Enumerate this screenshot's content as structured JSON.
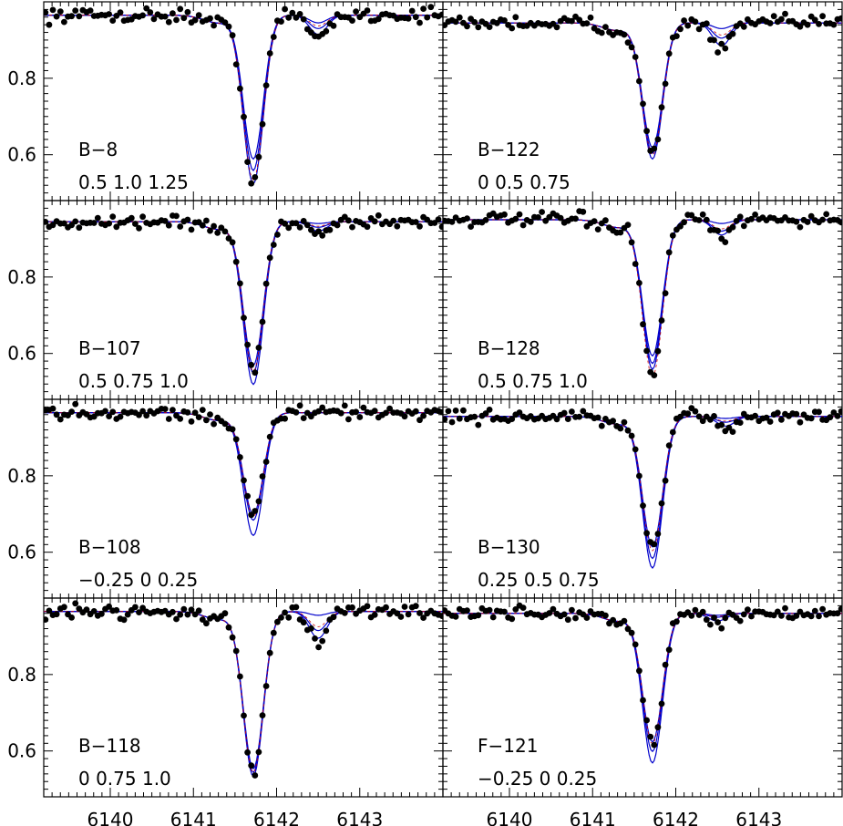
{
  "chart_data": {
    "type": "line",
    "x_ticks": [
      6140,
      6141,
      6142,
      6143
    ],
    "y_ticks": [
      0.6,
      0.8
    ],
    "xlim": [
      6139.2,
      6144.0
    ],
    "ylim": [
      0.48,
      1.0
    ],
    "series_styles": {
      "observed": "black dots",
      "synthetic": "blue lines",
      "best_fit": "red dashed"
    },
    "colors": {
      "synthetic": "#0000cc",
      "best_fit": "#cc0000",
      "observed": "#000000"
    },
    "panels": [
      {
        "star": "B−8",
        "abundances": "0.5  1.0  1.25",
        "cont": 0.965,
        "depths": [
          0.375,
          0.405,
          0.44
        ],
        "obs_depth": 0.43,
        "blend_depths": [
          0.02,
          0.035,
          0.05
        ],
        "blend_center": 6142.5
      },
      {
        "star": "B−122",
        "abundances": "0  0.5  0.75",
        "cont": 0.945,
        "depths": [
          0.325,
          0.34,
          0.355
        ],
        "obs_depth": 0.345,
        "blend_depths": [
          0.015,
          0.04,
          0.06
        ],
        "blend_center": 6142.55
      },
      {
        "star": "B−107",
        "abundances": "0.5  0.75  1.0",
        "cont": 0.945,
        "depths": [
          0.375,
          0.395,
          0.425
        ],
        "obs_depth": 0.39,
        "blend_depths": [
          0.005,
          0.015,
          0.025
        ],
        "blend_center": 6142.5
      },
      {
        "star": "B−128",
        "abundances": "0.5  0.75  1.0",
        "cont": 0.95,
        "depths": [
          0.355,
          0.375,
          0.39
        ],
        "obs_depth": 0.41,
        "blend_depths": [
          0.01,
          0.03,
          0.04
        ],
        "blend_center": 6142.55
      },
      {
        "star": "B−108",
        "abundances": "−0.25  0  0.25",
        "cont": 0.965,
        "depths": [
          0.265,
          0.28,
          0.32
        ],
        "obs_depth": 0.27,
        "blend_depths": [
          0.0,
          0.0,
          0.0
        ],
        "blend_center": 6142.5
      },
      {
        "star": "B−130",
        "abundances": "0.25  0.5  0.75",
        "cont": 0.955,
        "depths": [
          0.34,
          0.37,
          0.395
        ],
        "obs_depth": 0.35,
        "blend_depths": [
          0.005,
          0.015,
          0.025
        ],
        "blend_center": 6142.6
      },
      {
        "star": "B−118",
        "abundances": "0  0.75  1.0",
        "cont": 0.965,
        "depths": [
          0.41,
          0.42,
          0.43
        ],
        "obs_depth": 0.42,
        "blend_depths": [
          0.01,
          0.05,
          0.07
        ],
        "blend_center": 6142.5
      },
      {
        "star": "F−121",
        "abundances": "−0.25  0  0.25",
        "cont": 0.96,
        "depths": [
          0.335,
          0.36,
          0.39
        ],
        "obs_depth": 0.34,
        "blend_depths": [
          0.005,
          0.01,
          0.02
        ],
        "blend_center": 6142.5
      }
    ]
  }
}
